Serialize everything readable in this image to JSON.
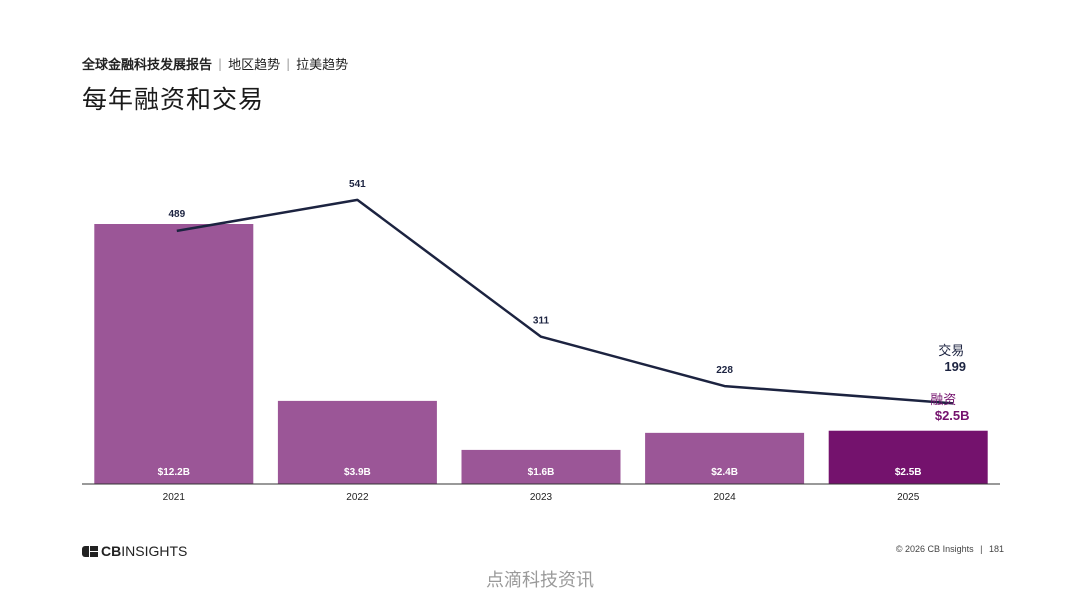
{
  "header": {
    "report_title": "全球金融科技发展报告",
    "section": "地区趋势",
    "subsection": "拉美趋势",
    "separator": "|",
    "page_title": "每年融资和交易"
  },
  "chart_data": {
    "type": "bar",
    "categories": [
      "2021",
      "2022",
      "2023",
      "2024",
      "2025"
    ],
    "series": [
      {
        "name": "融资",
        "kind": "bar",
        "values": [
          12.2,
          3.9,
          1.6,
          2.4,
          2.5
        ],
        "labels": [
          "$12.2B",
          "$3.9B",
          "$1.6B",
          "$2.4B",
          "$2.5B"
        ],
        "colors": [
          "#9b5697",
          "#9b5697",
          "#9b5697",
          "#9b5697",
          "#74126d"
        ]
      },
      {
        "name": "交易",
        "kind": "line",
        "values": [
          489,
          541,
          311,
          228,
          199
        ],
        "labels": [
          "489",
          "541",
          "311",
          "228",
          "199"
        ],
        "color": "#1c2340"
      }
    ],
    "legend": [
      {
        "label": "交易",
        "value": "199",
        "color": "#1c2340"
      },
      {
        "label": "融资",
        "value": "$2.5B",
        "color": "#74126d"
      }
    ],
    "bar_ylim": [
      0,
      12.2
    ],
    "line_ylim": [
      0,
      600
    ],
    "title": "每年融资和交易",
    "xlabel": "",
    "ylabel": "",
    "grid": false
  },
  "footer": {
    "logo_cb": "CB",
    "logo_rest": "INSIGHTS",
    "copyright": "© 2026 CB Insights",
    "page_number": "181",
    "separator": "|",
    "watermark": "点滴科技资讯"
  }
}
